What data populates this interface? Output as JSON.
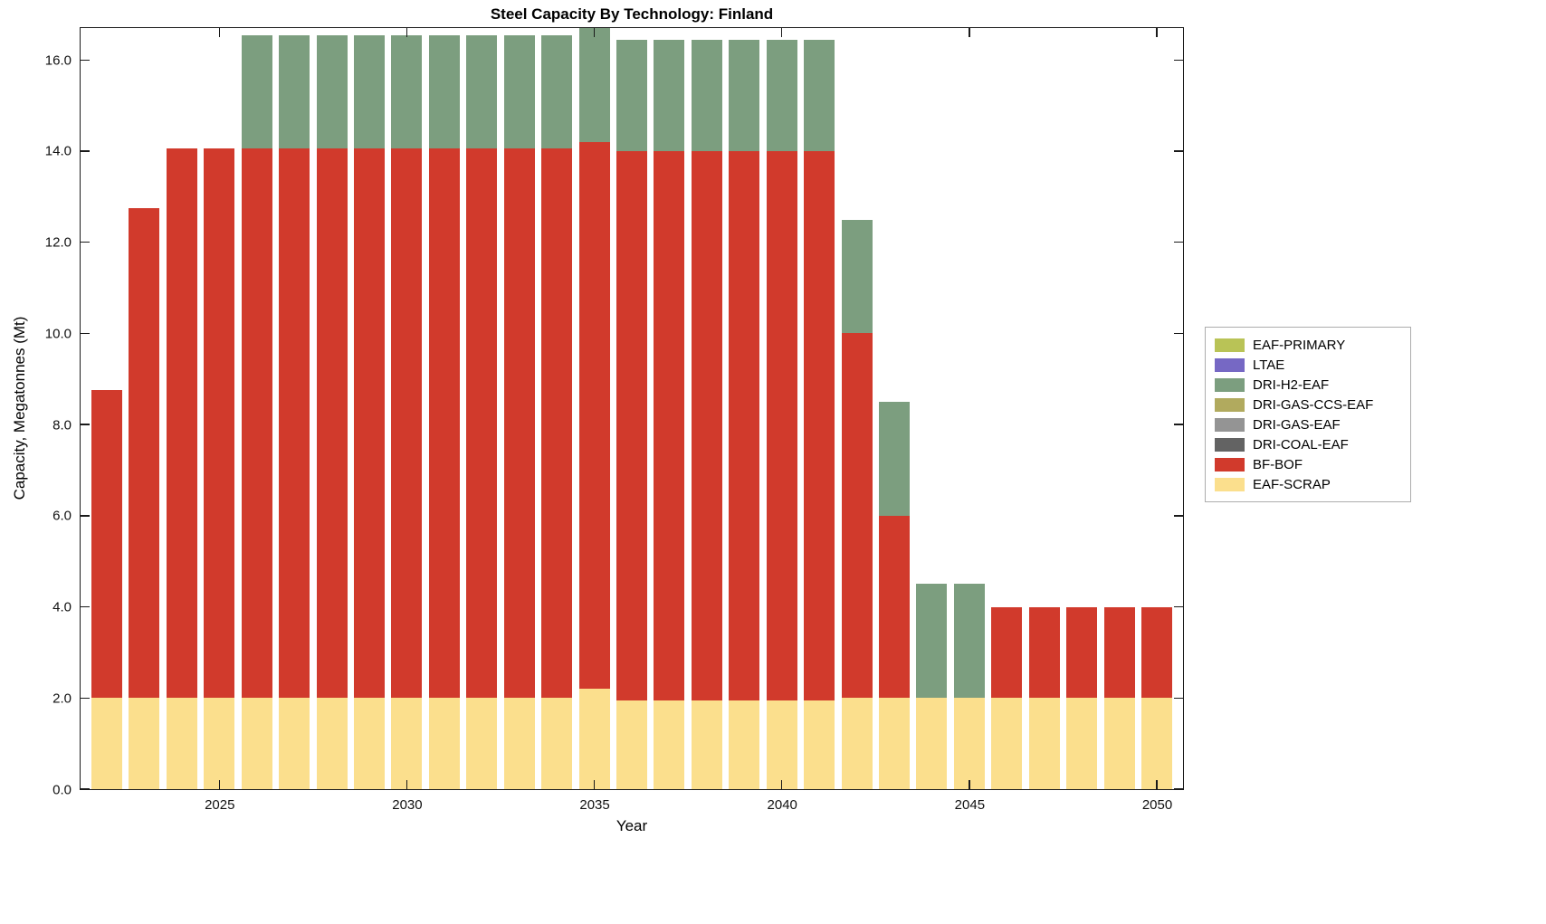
{
  "chart_data": {
    "type": "bar",
    "stacked": true,
    "title": "Steel Capacity By Technology: Finland",
    "xlabel": "Year",
    "ylabel": "Capacity, Megatonnes (Mt)",
    "xlim": [
      2021.3,
      2050.7
    ],
    "ylim": [
      0,
      16.7
    ],
    "bar_width": 0.82,
    "grid": false,
    "legend_position": "right-outside",
    "categories": [
      2022,
      2023,
      2024,
      2025,
      2026,
      2027,
      2028,
      2029,
      2030,
      2031,
      2032,
      2033,
      2034,
      2035,
      2036,
      2037,
      2038,
      2039,
      2040,
      2041,
      2042,
      2043,
      2044,
      2045,
      2046,
      2047,
      2048,
      2049,
      2050
    ],
    "xticks": [
      {
        "value": 2025,
        "label": "2025"
      },
      {
        "value": 2030,
        "label": "2030"
      },
      {
        "value": 2035,
        "label": "2035"
      },
      {
        "value": 2040,
        "label": "2040"
      },
      {
        "value": 2045,
        "label": "2045"
      },
      {
        "value": 2050,
        "label": "2050"
      }
    ],
    "yticks": [
      {
        "value": 0,
        "label": "0.0"
      },
      {
        "value": 2,
        "label": "2.0"
      },
      {
        "value": 4,
        "label": "4.0"
      },
      {
        "value": 6,
        "label": "6.0"
      },
      {
        "value": 8,
        "label": "8.0"
      },
      {
        "value": 10,
        "label": "10.0"
      },
      {
        "value": 12,
        "label": "12.0"
      },
      {
        "value": 14,
        "label": "14.0"
      },
      {
        "value": 16,
        "label": "16.0"
      }
    ],
    "series": [
      {
        "name": "EAF-SCRAP",
        "color": "#fbdf8d",
        "values": [
          2.0,
          2.0,
          2.0,
          2.0,
          2.0,
          2.0,
          2.0,
          2.0,
          2.0,
          2.0,
          2.0,
          2.0,
          2.0,
          2.2,
          1.95,
          1.95,
          1.95,
          1.95,
          1.95,
          1.95,
          2.0,
          2.0,
          2.0,
          2.0,
          2.0,
          2.0,
          2.0,
          2.0,
          2.0
        ]
      },
      {
        "name": "BF-BOF",
        "color": "#d13a2c",
        "values": [
          6.75,
          10.75,
          12.05,
          12.05,
          12.05,
          12.05,
          12.05,
          12.05,
          12.05,
          12.05,
          12.05,
          12.05,
          12.05,
          12.0,
          12.05,
          12.05,
          12.05,
          12.05,
          12.05,
          12.05,
          8.0,
          4.0,
          0,
          0,
          2.0,
          2.0,
          2.0,
          2.0,
          2.0
        ]
      },
      {
        "name": "DRI-H2-EAF",
        "color": "#7c9e7f",
        "values": [
          0,
          0,
          0,
          0,
          2.5,
          2.5,
          2.5,
          2.5,
          2.5,
          2.5,
          2.5,
          2.5,
          2.5,
          2.5,
          2.45,
          2.45,
          2.45,
          2.45,
          2.45,
          2.45,
          2.5,
          2.5,
          2.5,
          2.5,
          0,
          0,
          0,
          0,
          0
        ]
      }
    ],
    "legend": [
      {
        "name": "EAF-PRIMARY",
        "color": "#b9c356"
      },
      {
        "name": "LTAE",
        "color": "#7668c4"
      },
      {
        "name": "DRI-H2-EAF",
        "color": "#7c9e7f"
      },
      {
        "name": "DRI-GAS-CCS-EAF",
        "color": "#b1aa5e"
      },
      {
        "name": "DRI-GAS-EAF",
        "color": "#949494"
      },
      {
        "name": "DRI-COAL-EAF",
        "color": "#636363"
      },
      {
        "name": "BF-BOF",
        "color": "#d13a2c"
      },
      {
        "name": "EAF-SCRAP",
        "color": "#fbdf8d"
      }
    ]
  }
}
